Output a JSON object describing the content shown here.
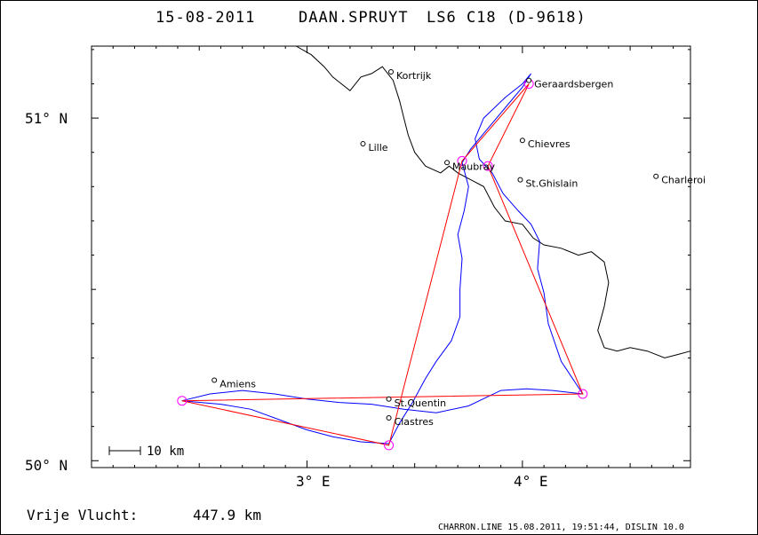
{
  "header": {
    "date": "15-08-2011",
    "pilot": "DAAN.SPRUYT",
    "glider": "LS6 C18 (D-9618)"
  },
  "axes": {
    "lat_labels": [
      "51° N",
      "50° N"
    ],
    "lon_labels": [
      "3° E",
      "4° E"
    ],
    "lon_range": [
      2.0,
      4.78
    ],
    "lat_range": [
      49.98,
      51.21
    ]
  },
  "cities": [
    {
      "name": "Kortrijk",
      "lon": 3.39,
      "lat": 51.135
    },
    {
      "name": "Geraardsbergen",
      "lon": 4.03,
      "lat": 51.11
    },
    {
      "name": "Lille",
      "lon": 3.26,
      "lat": 50.925
    },
    {
      "name": "Chievres",
      "lon": 4.0,
      "lat": 50.935
    },
    {
      "name": "Maubray",
      "lon": 3.65,
      "lat": 50.87
    },
    {
      "name": "St.Ghislain",
      "lon": 3.99,
      "lat": 50.82
    },
    {
      "name": "Charleroi",
      "lon": 4.62,
      "lat": 50.83
    },
    {
      "name": "Amiens",
      "lon": 2.57,
      "lat": 50.235
    },
    {
      "name": "St.Quentin",
      "lon": 3.38,
      "lat": 50.18
    },
    {
      "name": "Clastres",
      "lon": 3.38,
      "lat": 50.125
    }
  ],
  "scale_bar": {
    "label": "10 km"
  },
  "distance": {
    "label": "Vrije Vlucht:",
    "value": "447.9 km"
  },
  "footer": {
    "text": "CHARRON.LINE 15.08.2011, 19:51:44, DISLIN 10.0"
  },
  "colors": {
    "task": "#ff0000",
    "track": "#0000ff",
    "turnpoint": "#ff00ff",
    "border": "#000000"
  },
  "task": {
    "turnpoints": [
      {
        "lon": 4.03,
        "lat": 51.1
      },
      {
        "lon": 3.72,
        "lat": 50.875
      },
      {
        "lon": 3.84,
        "lat": 50.86
      },
      {
        "lon": 4.28,
        "lat": 50.195
      },
      {
        "lon": 2.42,
        "lat": 50.175
      },
      {
        "lon": 3.38,
        "lat": 50.045
      }
    ],
    "route": [
      {
        "lon": 4.03,
        "lat": 51.1
      },
      {
        "lon": 3.72,
        "lat": 50.875
      },
      {
        "lon": 3.38,
        "lat": 50.045
      },
      {
        "lon": 2.42,
        "lat": 50.175
      },
      {
        "lon": 4.28,
        "lat": 50.195
      },
      {
        "lon": 3.84,
        "lat": 50.86
      },
      {
        "lon": 4.03,
        "lat": 51.1
      }
    ]
  },
  "track": [
    {
      "lon": 4.04,
      "lat": 51.13
    },
    {
      "lon": 4.0,
      "lat": 51.09
    },
    {
      "lon": 3.92,
      "lat": 51.03
    },
    {
      "lon": 3.84,
      "lat": 50.97
    },
    {
      "lon": 3.76,
      "lat": 50.91
    },
    {
      "lon": 3.72,
      "lat": 50.87
    },
    {
      "lon": 3.75,
      "lat": 50.8
    },
    {
      "lon": 3.73,
      "lat": 50.73
    },
    {
      "lon": 3.7,
      "lat": 50.66
    },
    {
      "lon": 3.72,
      "lat": 50.59
    },
    {
      "lon": 3.71,
      "lat": 50.5
    },
    {
      "lon": 3.71,
      "lat": 50.42
    },
    {
      "lon": 3.67,
      "lat": 50.35
    },
    {
      "lon": 3.6,
      "lat": 50.29
    },
    {
      "lon": 3.55,
      "lat": 50.24
    },
    {
      "lon": 3.49,
      "lat": 50.17
    },
    {
      "lon": 3.43,
      "lat": 50.11
    },
    {
      "lon": 3.38,
      "lat": 50.05
    },
    {
      "lon": 3.25,
      "lat": 50.055
    },
    {
      "lon": 3.12,
      "lat": 50.07
    },
    {
      "lon": 3.0,
      "lat": 50.09
    },
    {
      "lon": 2.87,
      "lat": 50.12
    },
    {
      "lon": 2.74,
      "lat": 50.15
    },
    {
      "lon": 2.6,
      "lat": 50.165
    },
    {
      "lon": 2.42,
      "lat": 50.175
    },
    {
      "lon": 2.55,
      "lat": 50.195
    },
    {
      "lon": 2.7,
      "lat": 50.205
    },
    {
      "lon": 2.85,
      "lat": 50.195
    },
    {
      "lon": 3.0,
      "lat": 50.18
    },
    {
      "lon": 3.15,
      "lat": 50.17
    },
    {
      "lon": 3.3,
      "lat": 50.165
    },
    {
      "lon": 3.45,
      "lat": 50.15
    },
    {
      "lon": 3.6,
      "lat": 50.14
    },
    {
      "lon": 3.75,
      "lat": 50.16
    },
    {
      "lon": 3.9,
      "lat": 50.205
    },
    {
      "lon": 4.02,
      "lat": 50.21
    },
    {
      "lon": 4.14,
      "lat": 50.205
    },
    {
      "lon": 4.28,
      "lat": 50.195
    },
    {
      "lon": 4.18,
      "lat": 50.29
    },
    {
      "lon": 4.12,
      "lat": 50.4
    },
    {
      "lon": 4.1,
      "lat": 50.49
    },
    {
      "lon": 4.07,
      "lat": 50.56
    },
    {
      "lon": 4.08,
      "lat": 50.64
    },
    {
      "lon": 4.04,
      "lat": 50.69
    },
    {
      "lon": 3.98,
      "lat": 50.73
    },
    {
      "lon": 3.91,
      "lat": 50.78
    },
    {
      "lon": 3.86,
      "lat": 50.84
    },
    {
      "lon": 3.8,
      "lat": 50.88
    },
    {
      "lon": 3.78,
      "lat": 50.94
    },
    {
      "lon": 3.82,
      "lat": 51.0
    },
    {
      "lon": 3.92,
      "lat": 51.06
    },
    {
      "lon": 4.0,
      "lat": 51.1
    },
    {
      "lon": 4.04,
      "lat": 51.13
    }
  ],
  "border": [
    {
      "lon": 2.95,
      "lat": 51.21
    },
    {
      "lon": 3.02,
      "lat": 51.185
    },
    {
      "lon": 3.08,
      "lat": 51.15
    },
    {
      "lon": 3.12,
      "lat": 51.12
    },
    {
      "lon": 3.16,
      "lat": 51.1
    },
    {
      "lon": 3.2,
      "lat": 51.08
    },
    {
      "lon": 3.25,
      "lat": 51.12
    },
    {
      "lon": 3.3,
      "lat": 51.13
    },
    {
      "lon": 3.35,
      "lat": 51.15
    },
    {
      "lon": 3.4,
      "lat": 51.11
    },
    {
      "lon": 3.43,
      "lat": 51.05
    },
    {
      "lon": 3.45,
      "lat": 51.0
    },
    {
      "lon": 3.47,
      "lat": 50.95
    },
    {
      "lon": 3.5,
      "lat": 50.9
    },
    {
      "lon": 3.55,
      "lat": 50.86
    },
    {
      "lon": 3.62,
      "lat": 50.84
    },
    {
      "lon": 3.66,
      "lat": 50.86
    },
    {
      "lon": 3.7,
      "lat": 50.84
    },
    {
      "lon": 3.76,
      "lat": 50.82
    },
    {
      "lon": 3.82,
      "lat": 50.8
    },
    {
      "lon": 3.87,
      "lat": 50.74
    },
    {
      "lon": 3.92,
      "lat": 50.7
    },
    {
      "lon": 4.0,
      "lat": 50.69
    },
    {
      "lon": 4.05,
      "lat": 50.65
    },
    {
      "lon": 4.1,
      "lat": 50.63
    },
    {
      "lon": 4.18,
      "lat": 50.62
    },
    {
      "lon": 4.26,
      "lat": 50.6
    },
    {
      "lon": 4.32,
      "lat": 50.61
    },
    {
      "lon": 4.38,
      "lat": 50.58
    },
    {
      "lon": 4.4,
      "lat": 50.52
    },
    {
      "lon": 4.38,
      "lat": 50.45
    },
    {
      "lon": 4.35,
      "lat": 50.38
    },
    {
      "lon": 4.38,
      "lat": 50.33
    },
    {
      "lon": 4.44,
      "lat": 50.32
    },
    {
      "lon": 4.5,
      "lat": 50.33
    },
    {
      "lon": 4.58,
      "lat": 50.32
    },
    {
      "lon": 4.66,
      "lat": 50.3
    },
    {
      "lon": 4.72,
      "lat": 50.31
    },
    {
      "lon": 4.78,
      "lat": 50.32
    }
  ]
}
